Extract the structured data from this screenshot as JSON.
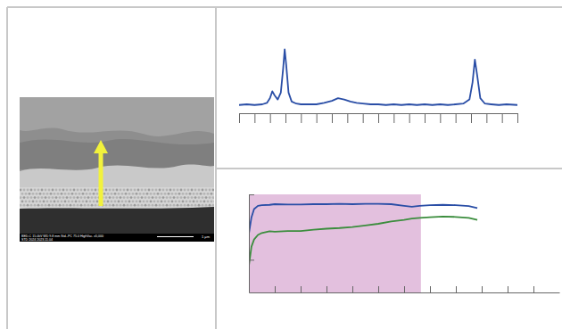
{
  "chart_data": [
    {
      "type": "line",
      "x": [
        0,
        0.5,
        1.0,
        1.5,
        1.8,
        2.0,
        2.15,
        2.3,
        2.5,
        2.7,
        2.85,
        2.95,
        3.05,
        3.2,
        3.4,
        3.7,
        4.0,
        4.5,
        5.0,
        5.5,
        6.0,
        6.4,
        6.8,
        7.2,
        7.6,
        8.0,
        8.5,
        9.0,
        9.5,
        10,
        10.5,
        11,
        11.5,
        12,
        12.5,
        13,
        13.5,
        14,
        14.5,
        14.9,
        15.1,
        15.25,
        15.4,
        15.6,
        15.9,
        16.3,
        16.8,
        17.3,
        18
      ],
      "series": [
        {
          "color": "#2a4ea6",
          "values": [
            12,
            13,
            12,
            13,
            15,
            22,
            32,
            26,
            20,
            30,
            65,
            93,
            70,
            30,
            17,
            14,
            13,
            13,
            13,
            15,
            18,
            22,
            20,
            17,
            15,
            14,
            13,
            13,
            12,
            13,
            12,
            13,
            12,
            13,
            12,
            13,
            12,
            13,
            14,
            20,
            45,
            78,
            55,
            22,
            14,
            13,
            12,
            13,
            12
          ]
        }
      ],
      "xlim": [
        0,
        18
      ],
      "xticks": [
        0,
        1,
        2,
        3,
        4,
        5,
        6,
        7,
        8,
        9,
        10,
        11,
        12,
        13,
        14,
        15,
        16,
        17,
        18
      ],
      "ylim": [
        0,
        100
      ],
      "tick_labels": false
    },
    {
      "type": "line",
      "x": [
        0,
        0.1,
        0.2,
        0.35,
        0.5,
        0.8,
        1,
        1.5,
        2,
        2.5,
        3,
        3.5,
        4,
        4.5,
        5,
        5.5,
        6,
        6.3,
        6.6,
        7,
        7.5,
        8,
        8.5,
        8.83
      ],
      "series": [
        {
          "color": "#2a4ea6",
          "values": [
            1.8,
            2.3,
            2.55,
            2.65,
            2.67,
            2.68,
            2.7,
            2.69,
            2.69,
            2.7,
            2.7,
            2.71,
            2.7,
            2.71,
            2.71,
            2.7,
            2.65,
            2.62,
            2.65,
            2.67,
            2.68,
            2.67,
            2.64,
            2.58
          ]
        },
        {
          "color": "#3b8d3d",
          "values": [
            0.82,
            1.4,
            1.62,
            1.76,
            1.82,
            1.87,
            1.86,
            1.88,
            1.88,
            1.92,
            1.95,
            1.97,
            2.0,
            2.05,
            2.1,
            2.17,
            2.22,
            2.26,
            2.28,
            2.3,
            2.32,
            2.31,
            2.28,
            2.22
          ]
        }
      ],
      "xlim": [
        0,
        12
      ],
      "xticks": [
        1,
        2,
        3,
        4,
        5,
        6,
        7,
        8,
        9,
        10,
        11
      ],
      "ylim": [
        0,
        3
      ],
      "yticks": [
        1,
        3
      ],
      "tick_labels": false,
      "highlight": {
        "x": [
          0,
          6.65
        ],
        "color": "#e3c0de"
      }
    }
  ],
  "sem_image": {
    "info": [
      "BED-C 15.0kV WD 9.8 mm Std.-PC 75.0 HighVac. x5,000",
      "STD 2024 2023.11.04"
    ],
    "scale_bar": "1 μm"
  }
}
